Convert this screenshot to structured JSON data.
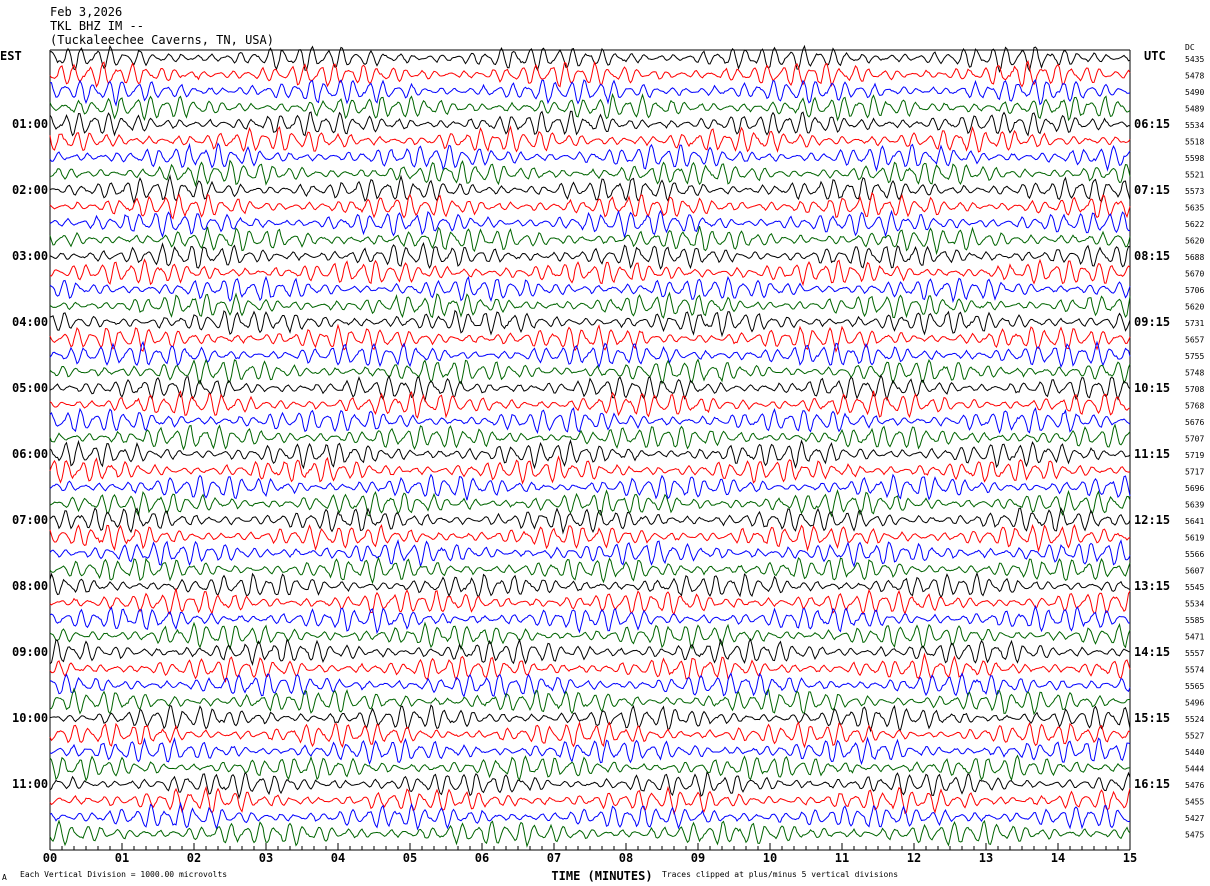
{
  "chart_data": {
    "type": "line",
    "title": [
      "Feb 3,2026",
      "TKL BHZ IM --",
      "(Tuckaleechee Caverns, TN, USA)"
    ],
    "left_timezone": "EST",
    "right_timezone": "UTC",
    "dc_header": "DC",
    "left_hour_labels": [
      "01:00",
      "02:00",
      "03:00",
      "04:00",
      "05:00",
      "06:00",
      "07:00",
      "08:00",
      "09:00",
      "10:00",
      "11:00"
    ],
    "right_hour_labels": [
      "06:15",
      "07:15",
      "08:15",
      "09:15",
      "10:15",
      "11:15",
      "12:15",
      "13:15",
      "14:15",
      "15:15",
      "16:15"
    ],
    "dc_values": [
      "5435",
      "5478",
      "5490",
      "5489",
      "5534",
      "5518",
      "5598",
      "5521",
      "5573",
      "5635",
      "5622",
      "5620",
      "5688",
      "5670",
      "5706",
      "5620",
      "5731",
      "5657",
      "5755",
      "5748",
      "5708",
      "5768",
      "5676",
      "5707",
      "5719",
      "5717",
      "5696",
      "5639",
      "5641",
      "5619",
      "5566",
      "5607",
      "5545",
      "5534",
      "5585",
      "5471",
      "5557",
      "5574",
      "5565",
      "5496",
      "5524",
      "5527",
      "5440",
      "5444",
      "5476",
      "5455",
      "5427",
      "5475"
    ],
    "xlabel": "TIME (MINUTES)",
    "x_ticks": [
      "00",
      "01",
      "02",
      "03",
      "04",
      "05",
      "06",
      "07",
      "08",
      "09",
      "10",
      "11",
      "12",
      "13",
      "14",
      "15"
    ],
    "xlim": [
      0,
      15
    ],
    "trace_colors": [
      "#000000",
      "#ff0000",
      "#0000ff",
      "#006400"
    ],
    "scale_note": "Each Vertical Division = 1000.00 microvolts",
    "clip_note": "Traces clipped at plus/minus 5 vertical divisions",
    "corner_mark": "A"
  }
}
